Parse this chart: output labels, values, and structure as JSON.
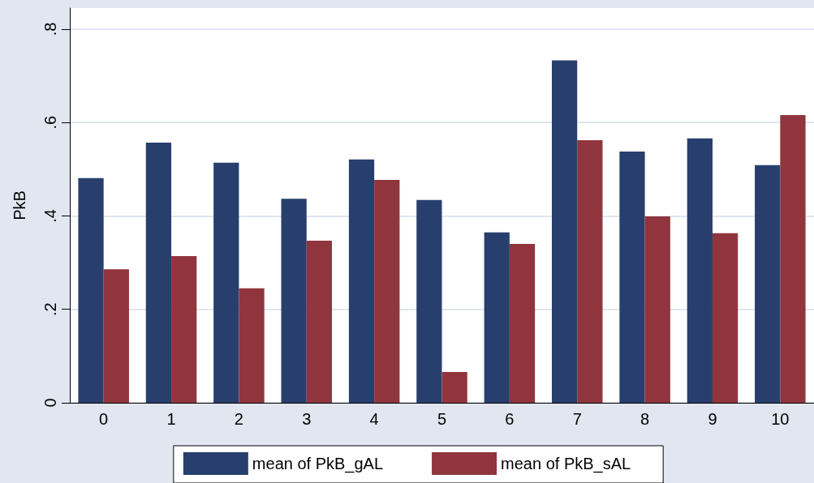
{
  "chart_data": {
    "type": "bar",
    "ylabel": "PkB",
    "categories": [
      "0",
      "1",
      "2",
      "3",
      "4",
      "5",
      "6",
      "7",
      "8",
      "9",
      "10"
    ],
    "series": [
      {
        "name": "mean of PkB_gAL",
        "color": "#283f6d",
        "values": [
          0.481,
          0.557,
          0.514,
          0.437,
          0.521,
          0.434,
          0.365,
          0.733,
          0.538,
          0.566,
          0.509
        ]
      },
      {
        "name": "mean of PkB_sAL",
        "color": "#90353d",
        "values": [
          0.286,
          0.314,
          0.245,
          0.347,
          0.477,
          0.066,
          0.34,
          0.562,
          0.399,
          0.363,
          0.616
        ]
      }
    ],
    "ylim": [
      0,
      0.845
    ],
    "yticks": [
      {
        "value": 0,
        "label": "0"
      },
      {
        "value": 0.2,
        "label": ".2"
      },
      {
        "value": 0.4,
        "label": ".4"
      },
      {
        "value": 0.6,
        "label": ".6"
      },
      {
        "value": 0.8,
        "label": ".8"
      }
    ],
    "grid": "y",
    "legend": "bottom"
  }
}
